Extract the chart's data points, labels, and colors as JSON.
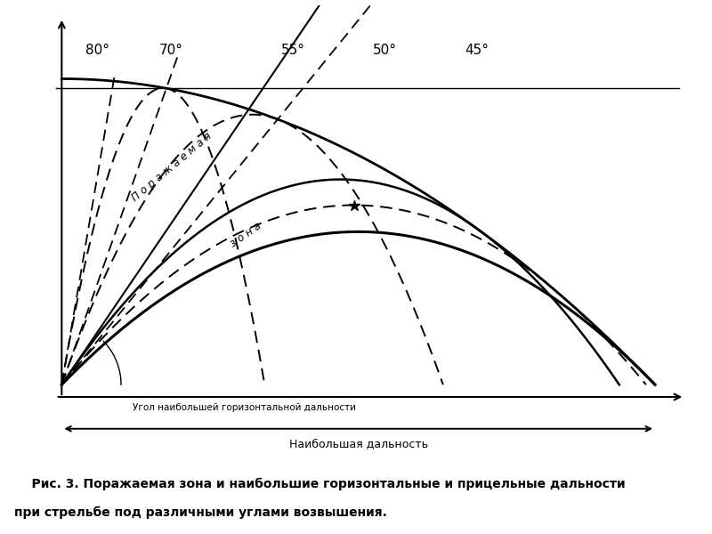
{
  "caption_line1": "    Рис. 3. Поражаемая зона и наибольшие горизонтальные и прицельные дальности",
  "caption_line2": "при стрельбе под различными углами возвышения.",
  "caption_bg": "#c8dff0",
  "angles_deg": [
    80,
    70,
    55,
    50,
    45
  ],
  "angle_labels": [
    "80°",
    "70°",
    "55°",
    "50°",
    "45°"
  ],
  "label_ugol": "Угол наибольшей горизонтальной дальности",
  "label_naibolshaya": "Наибольшая дальность",
  "zona_text_1": "П о р а ж а е м а я",
  "zona_text_2": "з о н а",
  "bg_color": "#ffffff",
  "line_color": "#000000"
}
